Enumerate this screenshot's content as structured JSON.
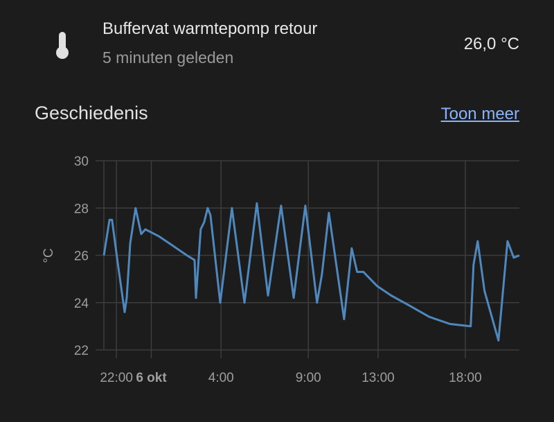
{
  "entity": {
    "icon": "thermometer-icon",
    "name": "Buffervat warmtepomp retour",
    "last_changed": "5 minuten geleden",
    "state": "26,0 °C"
  },
  "history": {
    "title": "Geschiedenis",
    "show_more_label": "Toon meer"
  },
  "colors": {
    "background": "#1c1c1c",
    "line": "#4f88bd",
    "grid": "#3d3d3d",
    "link": "#8ab4f8"
  },
  "chart_data": {
    "type": "line",
    "title": "",
    "xlabel": "",
    "ylabel": "°C",
    "ylim": [
      22,
      30
    ],
    "yticks": [
      22,
      24,
      26,
      28,
      30
    ],
    "xlim": [
      -2.72,
      21.1
    ],
    "x_unit": "hours since 6 okt 0:00",
    "xticks": [
      {
        "x": -2,
        "label": "22:00",
        "bold": false
      },
      {
        "x": 0,
        "label": "6 okt",
        "bold": true
      },
      {
        "x": 4,
        "label": "4:00",
        "bold": false
      },
      {
        "x": 9,
        "label": "9:00",
        "bold": false
      },
      {
        "x": 13,
        "label": "13:00",
        "bold": false
      },
      {
        "x": 18,
        "label": "18:00",
        "bold": false
      }
    ],
    "grid": true,
    "series": [
      {
        "name": "Buffervat warmtepomp retour",
        "points": [
          [
            -2.72,
            26.0
          ],
          [
            -2.4,
            27.5
          ],
          [
            -2.25,
            27.5
          ],
          [
            -1.93,
            25.7
          ],
          [
            -1.53,
            23.6
          ],
          [
            -1.41,
            24.2
          ],
          [
            -1.21,
            26.5
          ],
          [
            -0.9,
            28.0
          ],
          [
            -0.58,
            26.9
          ],
          [
            -0.34,
            27.1
          ],
          [
            0.45,
            26.8
          ],
          [
            1.25,
            26.4
          ],
          [
            2.04,
            26.0
          ],
          [
            2.48,
            25.8
          ],
          [
            2.56,
            24.2
          ],
          [
            2.83,
            27.1
          ],
          [
            3.03,
            27.4
          ],
          [
            3.23,
            28.0
          ],
          [
            3.39,
            27.7
          ],
          [
            3.95,
            24.0
          ],
          [
            4.62,
            28.0
          ],
          [
            5.34,
            24.0
          ],
          [
            6.05,
            28.2
          ],
          [
            6.69,
            24.3
          ],
          [
            7.44,
            28.1
          ],
          [
            8.16,
            24.2
          ],
          [
            8.83,
            28.1
          ],
          [
            9.5,
            24.0
          ],
          [
            9.78,
            25.2
          ],
          [
            10.18,
            27.8
          ],
          [
            11.05,
            23.3
          ],
          [
            11.49,
            26.3
          ],
          [
            11.8,
            25.3
          ],
          [
            12.16,
            25.3
          ],
          [
            12.95,
            24.7
          ],
          [
            13.75,
            24.3
          ],
          [
            14.74,
            23.9
          ],
          [
            15.93,
            23.4
          ],
          [
            17.12,
            23.1
          ],
          [
            18.31,
            23.0
          ],
          [
            18.47,
            25.6
          ],
          [
            18.71,
            26.6
          ],
          [
            19.1,
            24.5
          ],
          [
            19.9,
            22.4
          ],
          [
            20.42,
            26.6
          ],
          [
            20.78,
            25.9
          ],
          [
            21.1,
            26.0
          ]
        ]
      }
    ]
  }
}
